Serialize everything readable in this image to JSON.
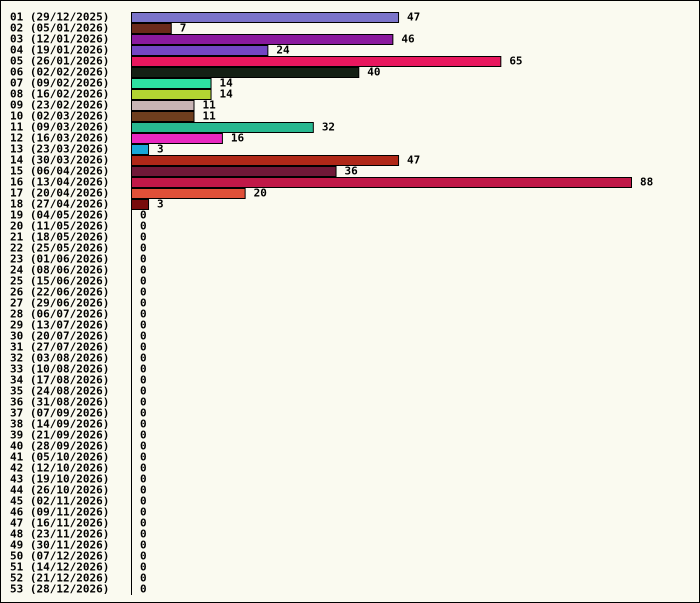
{
  "chart_data": {
    "type": "bar",
    "orientation": "horizontal",
    "title": "",
    "xlabel": "",
    "ylabel": "",
    "xlim": [
      0,
      88
    ],
    "grid": false,
    "categories": [
      "01 (29/12/2025)",
      "02 (05/01/2026)",
      "03 (12/01/2026)",
      "04 (19/01/2026)",
      "05 (26/01/2026)",
      "06 (02/02/2026)",
      "07 (09/02/2026)",
      "08 (16/02/2026)",
      "09 (23/02/2026)",
      "10 (02/03/2026)",
      "11 (09/03/2026)",
      "12 (16/03/2026)",
      "13 (23/03/2026)",
      "14 (30/03/2026)",
      "15 (06/04/2026)",
      "16 (13/04/2026)",
      "17 (20/04/2026)",
      "18 (27/04/2026)",
      "19 (04/05/2026)",
      "20 (11/05/2026)",
      "21 (18/05/2026)",
      "22 (25/05/2026)",
      "23 (01/06/2026)",
      "24 (08/06/2026)",
      "25 (15/06/2026)",
      "26 (22/06/2026)",
      "27 (29/06/2026)",
      "28 (06/07/2026)",
      "29 (13/07/2026)",
      "30 (20/07/2026)",
      "31 (27/07/2026)",
      "32 (03/08/2026)",
      "33 (10/08/2026)",
      "34 (17/08/2026)",
      "35 (24/08/2026)",
      "36 (31/08/2026)",
      "37 (07/09/2026)",
      "38 (14/09/2026)",
      "39 (21/09/2026)",
      "40 (28/09/2026)",
      "41 (05/10/2026)",
      "42 (12/10/2026)",
      "43 (19/10/2026)",
      "44 (26/10/2026)",
      "45 (02/11/2026)",
      "46 (09/11/2026)",
      "47 (16/11/2026)",
      "48 (23/11/2026)",
      "49 (30/11/2026)",
      "50 (07/12/2026)",
      "51 (14/12/2026)",
      "52 (21/12/2026)",
      "53 (28/12/2026)"
    ],
    "values": [
      47,
      7,
      46,
      24,
      65,
      40,
      14,
      14,
      11,
      11,
      32,
      16,
      3,
      47,
      36,
      88,
      20,
      3,
      0,
      0,
      0,
      0,
      0,
      0,
      0,
      0,
      0,
      0,
      0,
      0,
      0,
      0,
      0,
      0,
      0,
      0,
      0,
      0,
      0,
      0,
      0,
      0,
      0,
      0,
      0,
      0,
      0,
      0,
      0,
      0,
      0,
      0,
      0
    ],
    "colors": [
      "#7b74c9",
      "#6b2a1a",
      "#8a1a9e",
      "#7446c4",
      "#e8175e",
      "#142014",
      "#2ee0a0",
      "#b2d432",
      "#c8b4b4",
      "#6e3e1e",
      "#28b890",
      "#e828c0",
      "#18a8d8",
      "#b02818",
      "#701838",
      "#c01848",
      "#e05038",
      "#780c0c"
    ]
  }
}
